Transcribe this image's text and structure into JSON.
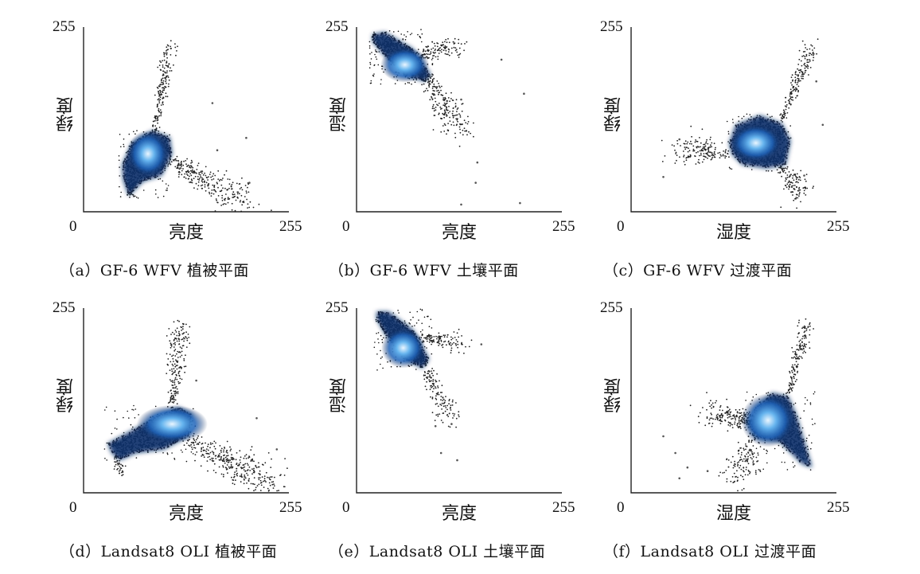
{
  "chart_data": [
    {
      "type": "scatter",
      "panel": "a",
      "caption": "（a）GF-6 WFV 植被平面",
      "xlabel": "亮度",
      "ylabel": "绿度",
      "x_ticks": [
        "0",
        "255"
      ],
      "y_ticks": [
        "255"
      ],
      "xlim": [
        0,
        255
      ],
      "ylim": [
        0,
        255
      ],
      "density": "colored by point density (dark navy → light blue core)",
      "core": {
        "x": 80,
        "y": 80
      },
      "hull": [
        [
          48,
          65
        ],
        [
          60,
          95
        ],
        [
          85,
          112
        ],
        [
          107,
          103
        ],
        [
          110,
          80
        ],
        [
          97,
          50
        ],
        [
          74,
          42
        ],
        [
          56,
          22
        ],
        [
          49,
          45
        ]
      ],
      "tails": [
        {
          "from": [
            88,
            108
          ],
          "to": [
            108,
            232
          ],
          "spread": 7,
          "n": 180
        },
        {
          "from": [
            108,
            72
          ],
          "to": [
            200,
            12
          ],
          "spread": 18,
          "n": 280
        },
        {
          "from": [
            55,
            40
          ],
          "to": [
            60,
            22
          ],
          "spread": 4,
          "n": 40
        }
      ],
      "outliers": [
        [
          160,
          150
        ],
        [
          202,
          102
        ],
        [
          166,
          85
        ],
        [
          206,
          40
        ],
        [
          120,
          60
        ]
      ]
    },
    {
      "type": "scatter",
      "panel": "b",
      "caption": "（b）GF-6 WFV 土壤平面",
      "xlabel": "亮度",
      "ylabel": "湿度",
      "x_ticks": [
        "0",
        "255"
      ],
      "y_ticks": [
        "255"
      ],
      "xlim": [
        0,
        255
      ],
      "ylim": [
        0,
        255
      ],
      "density": "colored by point density (dark navy → light blue core)",
      "core": {
        "x": 60,
        "y": 203
      },
      "hull": [
        [
          20,
          245
        ],
        [
          35,
          248
        ],
        [
          70,
          225
        ],
        [
          92,
          190
        ],
        [
          85,
          180
        ],
        [
          60,
          188
        ],
        [
          35,
          215
        ],
        [
          20,
          235
        ]
      ],
      "tails": [
        {
          "from": [
            80,
            195
          ],
          "to": [
            130,
            110
          ],
          "spread": 14,
          "n": 220
        },
        {
          "from": [
            75,
            215
          ],
          "to": [
            120,
            230
          ],
          "spread": 12,
          "n": 120
        }
      ],
      "outliers": [
        [
          130,
          155
        ],
        [
          180,
          210
        ],
        [
          208,
          163
        ],
        [
          150,
          68
        ],
        [
          203,
          12
        ],
        [
          148,
          40
        ],
        [
          130,
          10
        ]
      ]
    },
    {
      "type": "scatter",
      "panel": "c",
      "caption": "（c）GF-6 WFV 过渡平面",
      "xlabel": "湿度",
      "ylabel": "绿度",
      "x_ticks": [
        "0",
        "255"
      ],
      "y_ticks": [
        "255"
      ],
      "xlim": [
        0,
        255
      ],
      "ylim": [
        0,
        255
      ],
      "density": "colored by point density (dark navy → light blue core)",
      "core": {
        "x": 155,
        "y": 95
      },
      "hull": [
        [
          122,
          95
        ],
        [
          130,
          120
        ],
        [
          160,
          133
        ],
        [
          187,
          122
        ],
        [
          198,
          98
        ],
        [
          192,
          65
        ],
        [
          168,
          60
        ],
        [
          138,
          65
        ],
        [
          125,
          80
        ]
      ],
      "tails": [
        {
          "from": [
            185,
            122
          ],
          "to": [
            225,
            228
          ],
          "spread": 8,
          "n": 170
        },
        {
          "from": [
            120,
            80
          ],
          "to": [
            60,
            88
          ],
          "spread": 16,
          "n": 160
        },
        {
          "from": [
            180,
            70
          ],
          "to": [
            210,
            25
          ],
          "spread": 12,
          "n": 140
        }
      ],
      "outliers": [
        [
          40,
          48
        ],
        [
          230,
          180
        ],
        [
          238,
          120
        ],
        [
          60,
          100
        ],
        [
          215,
          50
        ]
      ]
    },
    {
      "type": "scatter",
      "panel": "d",
      "caption": "（d）Landsat8 OLI 植被平面",
      "xlabel": "亮度",
      "ylabel": "绿度",
      "x_ticks": [
        "0",
        "255"
      ],
      "y_ticks": [
        "255"
      ],
      "xlim": [
        0,
        255
      ],
      "ylim": [
        0,
        255
      ],
      "density": "colored by point density (dark navy → light blue core)",
      "core": {
        "x": 110,
        "y": 95
      },
      "hull": [
        [
          30,
          68
        ],
        [
          50,
          80
        ],
        [
          90,
          105
        ],
        [
          118,
          118
        ],
        [
          135,
          108
        ],
        [
          130,
          78
        ],
        [
          100,
          60
        ],
        [
          65,
          55
        ],
        [
          45,
          45
        ],
        [
          35,
          55
        ]
      ],
      "tails": [
        {
          "from": [
            110,
            115
          ],
          "to": [
            120,
            230
          ],
          "spread": 10,
          "n": 200
        },
        {
          "from": [
            125,
            78
          ],
          "to": [
            235,
            8
          ],
          "spread": 20,
          "n": 360
        },
        {
          "from": [
            40,
            52
          ],
          "to": [
            48,
            28
          ],
          "spread": 5,
          "n": 40
        }
      ],
      "outliers": [
        [
          215,
          103
        ],
        [
          140,
          155
        ],
        [
          240,
          60
        ],
        [
          200,
          22
        ]
      ]
    },
    {
      "type": "scatter",
      "panel": "e",
      "caption": "（e）Landsat8 OLI 土壤平面",
      "xlabel": "亮度",
      "ylabel": "湿度",
      "x_ticks": [
        "0",
        "255"
      ],
      "y_ticks": [
        "255"
      ],
      "xlim": [
        0,
        255
      ],
      "ylim": [
        0,
        255
      ],
      "density": "colored by point density (dark navy → light blue core)",
      "core": {
        "x": 58,
        "y": 200
      },
      "hull": [
        [
          25,
          250
        ],
        [
          40,
          250
        ],
        [
          70,
          225
        ],
        [
          90,
          185
        ],
        [
          82,
          172
        ],
        [
          58,
          185
        ],
        [
          35,
          220
        ],
        [
          25,
          240
        ]
      ],
      "tails": [
        {
          "from": [
            78,
            190
          ],
          "to": [
            118,
            100
          ],
          "spread": 10,
          "n": 150
        },
        {
          "from": [
            80,
            215
          ],
          "to": [
            130,
            205
          ],
          "spread": 10,
          "n": 110
        }
      ],
      "outliers": [
        [
          155,
          205
        ],
        [
          118,
          95
        ],
        [
          98,
          92
        ],
        [
          125,
          45
        ],
        [
          105,
          55
        ]
      ]
    },
    {
      "type": "scatter",
      "panel": "f",
      "caption": "（f）Landsat8 OLI 过渡平面",
      "xlabel": "湿度",
      "ylabel": "绿度",
      "x_ticks": [
        "0",
        "255"
      ],
      "y_ticks": [
        "255"
      ],
      "xlim": [
        0,
        255
      ],
      "ylim": [
        0,
        255
      ],
      "density": "colored by point density (dark navy → light blue core)",
      "core": {
        "x": 170,
        "y": 100
      },
      "hull": [
        [
          145,
          92
        ],
        [
          155,
          118
        ],
        [
          175,
          138
        ],
        [
          195,
          133
        ],
        [
          205,
          108
        ],
        [
          225,
          35
        ],
        [
          212,
          40
        ],
        [
          185,
          70
        ],
        [
          158,
          75
        ]
      ],
      "tails": [
        {
          "from": [
            195,
            135
          ],
          "to": [
            218,
            235
          ],
          "spread": 7,
          "n": 150
        },
        {
          "from": [
            150,
            100
          ],
          "to": [
            100,
            110
          ],
          "spread": 16,
          "n": 200
        },
        {
          "from": [
            155,
            80
          ],
          "to": [
            130,
            20
          ],
          "spread": 16,
          "n": 140
        }
      ],
      "outliers": [
        [
          40,
          78
        ],
        [
          55,
          55
        ],
        [
          70,
          35
        ],
        [
          95,
          30
        ],
        [
          60,
          20
        ]
      ]
    }
  ]
}
